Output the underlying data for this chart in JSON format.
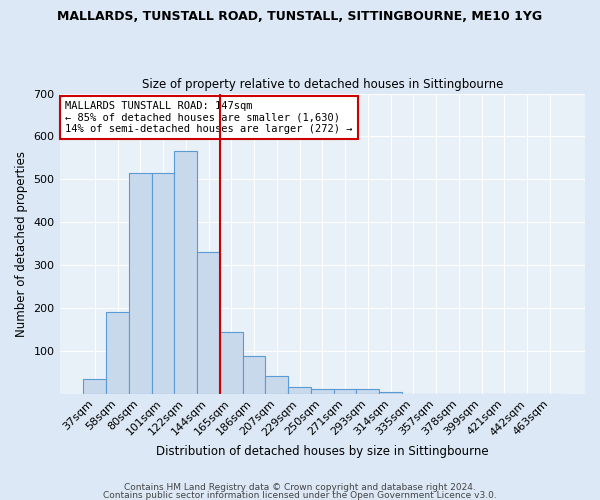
{
  "title": "MALLARDS, TUNSTALL ROAD, TUNSTALL, SITTINGBOURNE, ME10 1YG",
  "subtitle": "Size of property relative to detached houses in Sittingbourne",
  "xlabel": "Distribution of detached houses by size in Sittingbourne",
  "ylabel": "Number of detached properties",
  "footnote1": "Contains HM Land Registry data © Crown copyright and database right 2024.",
  "footnote2": "Contains public sector information licensed under the Open Government Licence v3.0.",
  "bar_labels": [
    "37sqm",
    "58sqm",
    "80sqm",
    "101sqm",
    "122sqm",
    "144sqm",
    "165sqm",
    "186sqm",
    "207sqm",
    "229sqm",
    "250sqm",
    "271sqm",
    "293sqm",
    "314sqm",
    "335sqm",
    "357sqm",
    "378sqm",
    "399sqm",
    "421sqm",
    "442sqm",
    "463sqm"
  ],
  "bar_values": [
    35,
    190,
    515,
    515,
    565,
    330,
    145,
    88,
    42,
    15,
    10,
    10,
    12,
    5,
    0,
    0,
    0,
    0,
    0,
    0,
    0
  ],
  "bar_color": "#c9d9ec",
  "bar_edge_color": "#5b9bd5",
  "vline_color": "#cc0000",
  "vline_position": 5.5,
  "ylim": [
    0,
    700
  ],
  "yticks": [
    0,
    100,
    200,
    300,
    400,
    500,
    600,
    700
  ],
  "annotation_text": "MALLARDS TUNSTALL ROAD: 147sqm\n← 85% of detached houses are smaller (1,630)\n14% of semi-detached houses are larger (272) →",
  "annotation_box_color": "#ffffff",
  "annotation_box_edge": "#cc0000",
  "bg_color": "#dce8f5",
  "plot_bg_color": "#e8f0f8",
  "title_fontsize": 9,
  "subtitle_fontsize": 8.5,
  "axis_label_fontsize": 8.5,
  "tick_fontsize": 8,
  "annotation_fontsize": 7.5,
  "footnote_fontsize": 6.5
}
